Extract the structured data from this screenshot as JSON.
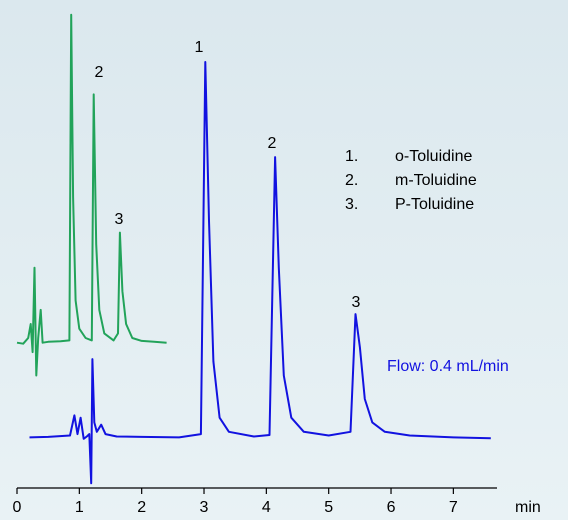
{
  "chart_data": {
    "type": "line",
    "x_label": "min",
    "xlim": [
      0,
      7.7
    ],
    "xticks": [
      0,
      1,
      2,
      3,
      4,
      5,
      6,
      7
    ],
    "ylim": [
      -2,
      100
    ],
    "note": "Flow: 0.4 mL/min",
    "compounds": [
      {
        "number": "1.",
        "name": "o-Toluidine"
      },
      {
        "number": "2.",
        "name": "m-Toluidine"
      },
      {
        "number": "3.",
        "name": "P-Toluidine"
      }
    ],
    "series": [
      {
        "color": "#22a35a",
        "peak_labels": [
          "2",
          "3"
        ],
        "x": [
          0.0,
          0.1,
          0.18,
          0.22,
          0.25,
          0.28,
          0.31,
          0.34,
          0.38,
          0.41,
          0.5,
          0.7,
          0.84,
          0.87,
          0.9,
          0.94,
          1.0,
          1.1,
          1.2,
          1.23,
          1.27,
          1.32,
          1.4,
          1.55,
          1.62,
          1.65,
          1.69,
          1.75,
          1.85,
          2.0,
          2.2,
          2.4
        ],
        "values": [
          29.0,
          28.8,
          30.0,
          33.0,
          27.0,
          45.0,
          22.0,
          30.0,
          36.0,
          29.0,
          29.2,
          29.3,
          29.5,
          99.0,
          60.0,
          38.0,
          32.0,
          30.0,
          29.5,
          82.0,
          50.0,
          36.0,
          31.0,
          29.5,
          31.0,
          52.5,
          40.0,
          33.0,
          30.0,
          29.4,
          29.2,
          29.0
        ]
      },
      {
        "color": "#1212e0",
        "peak_labels": [
          "1",
          "2",
          "3"
        ],
        "x": [
          0.2,
          0.5,
          0.85,
          0.92,
          0.97,
          1.02,
          1.07,
          1.12,
          1.16,
          1.19,
          1.21,
          1.24,
          1.28,
          1.35,
          1.42,
          1.6,
          2.0,
          2.6,
          2.95,
          3.02,
          3.08,
          3.15,
          3.25,
          3.4,
          3.8,
          4.05,
          4.14,
          4.2,
          4.28,
          4.4,
          4.6,
          5.0,
          5.35,
          5.43,
          5.5,
          5.58,
          5.7,
          5.9,
          6.3,
          7.0,
          7.6
        ],
        "values": [
          8.8,
          8.9,
          9.2,
          13.5,
          9.5,
          13.0,
          8.5,
          9.0,
          9.5,
          -1.0,
          25.5,
          12.0,
          10.0,
          11.5,
          9.5,
          9.0,
          8.9,
          8.8,
          9.5,
          88.9,
          55.0,
          25.0,
          13.0,
          10.0,
          9.0,
          9.3,
          68.6,
          45.0,
          22.0,
          13.0,
          10.0,
          9.2,
          10.0,
          35.1,
          28.0,
          17.0,
          12.0,
          10.0,
          9.2,
          8.8,
          8.6
        ]
      }
    ]
  }
}
